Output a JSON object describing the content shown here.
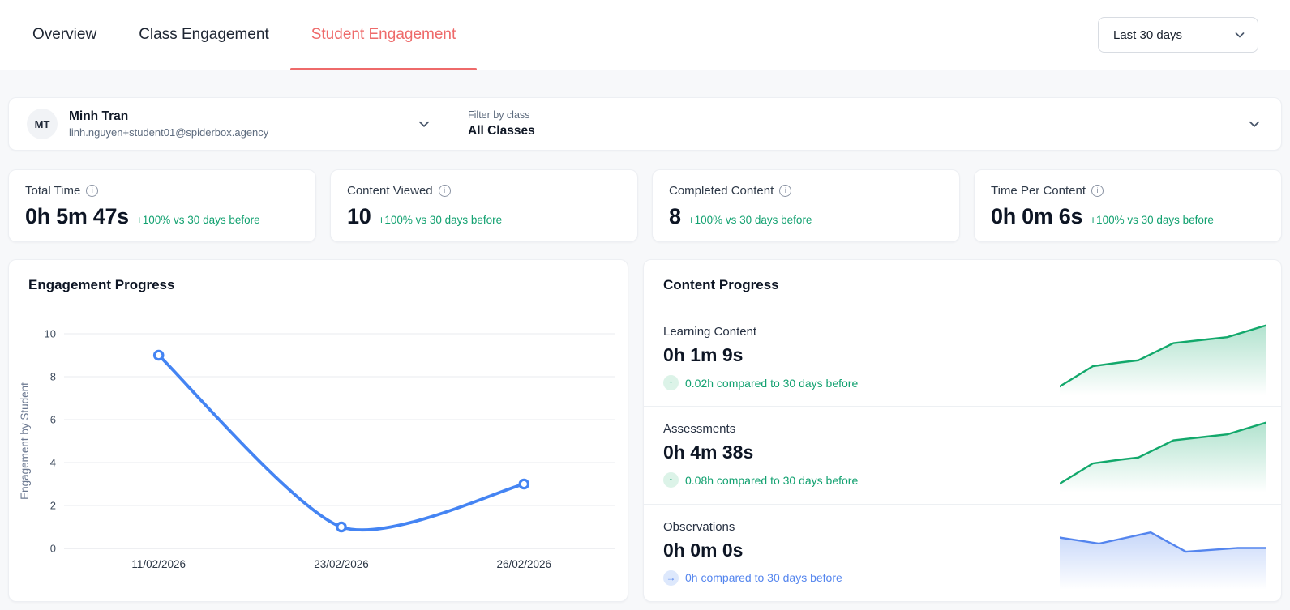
{
  "header": {
    "tabs": [
      {
        "label": "Overview"
      },
      {
        "label": "Class Engagement"
      },
      {
        "label": "Student Engagement"
      }
    ],
    "active_tab": "Student Engagement",
    "date_range": {
      "value": "Last 30 days"
    }
  },
  "filters": {
    "student": {
      "initials": "MT",
      "name": "Minh Tran",
      "email": "linh.nguyen+student01@spiderbox.agency"
    },
    "class": {
      "label": "Filter by class",
      "value": "All Classes"
    }
  },
  "icons": {
    "info": "i"
  },
  "stats": [
    {
      "label": "Total Time",
      "value": "0h 5m 47s",
      "delta": "+100% vs 30 days before"
    },
    {
      "label": "Content Viewed",
      "value": "10",
      "delta": "+100% vs 30 days before"
    },
    {
      "label": "Completed Content",
      "value": "8",
      "delta": "+100% vs 30 days before"
    },
    {
      "label": "Time Per Content",
      "value": "0h 0m 6s",
      "delta": "+100% vs 30 days before"
    }
  ],
  "engagement": {
    "title": "Engagement Progress"
  },
  "content_progress": {
    "title": "Content Progress",
    "rows": [
      {
        "label": "Learning Content",
        "value": "0h 1m 9s",
        "trend_icon": "↑",
        "delta": "0.02h compared to 30 days before",
        "tone": "green"
      },
      {
        "label": "Assessments",
        "value": "0h 4m 38s",
        "trend_icon": "↑",
        "delta": "0.08h compared to 30 days before",
        "tone": "green"
      },
      {
        "label": "Observations",
        "value": "0h 0m 0s",
        "trend_icon": "→",
        "delta": "0h compared to 30 days before",
        "tone": "blue"
      }
    ]
  },
  "colors": {
    "accent_red": "#ee6a6a",
    "positive_green": "#12a170",
    "sparkline_green": "#12a86b",
    "line_blue": "#4484f3",
    "info_blue": "#5485ee"
  },
  "chart_data": [
    {
      "id": "engagement-progress",
      "type": "line",
      "title": "Engagement Progress",
      "xlabel": "",
      "ylabel": "Engagement by Student",
      "x": [
        "11/02/2026",
        "23/02/2026",
        "26/02/2026"
      ],
      "values": [
        9,
        1,
        3
      ],
      "ylim": [
        0,
        10
      ],
      "yticks": [
        0,
        2,
        4,
        6,
        8,
        10
      ],
      "grid": true,
      "legend": "none",
      "line_color": "#4484f3",
      "point_style": "open-circle"
    },
    {
      "id": "learning-content-sparkline",
      "type": "area",
      "color": "#12a86b",
      "points": [
        [
          0,
          88
        ],
        [
          16,
          61
        ],
        [
          29,
          56
        ],
        [
          38,
          53
        ],
        [
          55,
          30
        ],
        [
          71,
          25
        ],
        [
          81,
          22
        ],
        [
          100,
          6
        ]
      ]
    },
    {
      "id": "assessments-sparkline",
      "type": "area",
      "color": "#12a86b",
      "points": [
        [
          0,
          88
        ],
        [
          16,
          61
        ],
        [
          29,
          56
        ],
        [
          38,
          53
        ],
        [
          55,
          30
        ],
        [
          71,
          25
        ],
        [
          81,
          22
        ],
        [
          100,
          6
        ]
      ]
    },
    {
      "id": "observations-sparkline",
      "type": "area",
      "color": "#5485ee",
      "points": [
        [
          0,
          30
        ],
        [
          19,
          38
        ],
        [
          44,
          23
        ],
        [
          61,
          49
        ],
        [
          86,
          44
        ],
        [
          100,
          44
        ]
      ]
    }
  ]
}
